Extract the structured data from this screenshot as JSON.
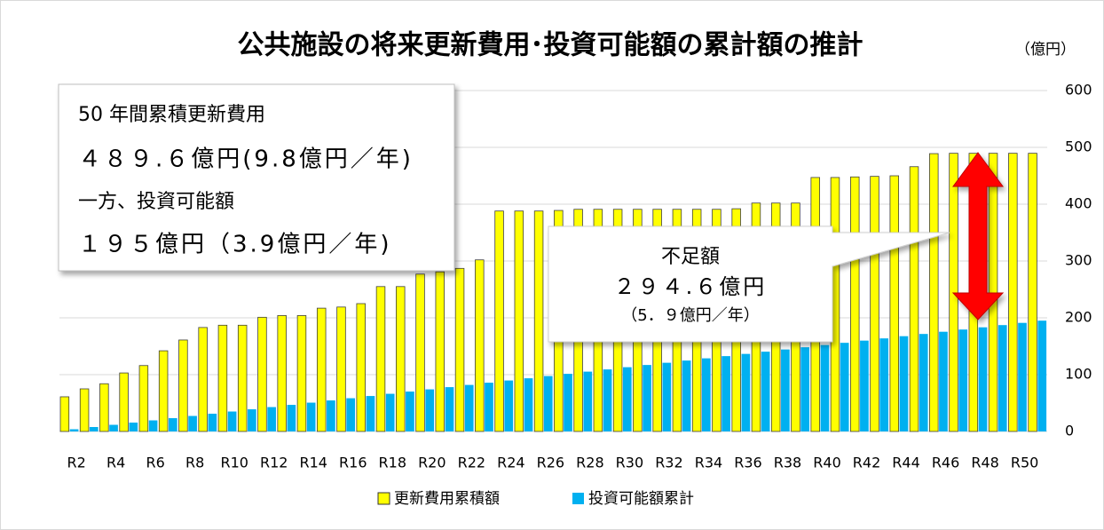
{
  "chart_data": {
    "type": "bar",
    "title": "公共施設の将来更新費用･投資可能額の累計額の推計",
    "y_axis_label": "（億円）",
    "annotations": [
      "50 年間累積更新費用",
      "４８９.６億円(9.8億円／年)",
      "一方、投資可能額",
      "１９５億円（3.9億円／年)",
      "不足額",
      "２９４.６億円",
      "（5．９億円／年）"
    ],
    "categories": [
      "R2",
      null,
      "R4",
      null,
      "R6",
      null,
      "R8",
      null,
      "R10",
      null,
      "R12",
      null,
      "R14",
      null,
      "R16",
      null,
      "R18",
      null,
      "R20",
      null,
      "R22",
      null,
      "R24",
      null,
      "R26",
      null,
      "R28",
      null,
      "R30",
      null,
      "R32",
      null,
      "R34",
      null,
      "R36",
      null,
      "R38",
      null,
      "R40",
      null,
      "R42",
      null,
      "R44",
      null,
      "R46",
      null,
      "R48",
      null,
      "R50",
      null
    ],
    "series": [
      {
        "name": "更新費用累積額",
        "color": "#ffff00",
        "values": [
          61,
          75,
          84,
          103,
          116,
          142,
          161,
          183,
          187,
          187,
          201,
          204,
          204,
          217,
          219,
          225,
          255,
          255,
          277,
          281,
          287,
          302,
          388,
          388,
          388,
          389,
          391,
          391,
          391,
          391,
          391,
          391,
          391,
          391,
          392,
          402,
          402,
          402,
          447,
          447,
          448,
          449,
          450,
          466,
          489,
          489.6,
          489.6,
          489.6,
          489.6,
          489.6
        ]
      },
      {
        "name": "投資可能額累計",
        "color": "#00b0f0",
        "values": [
          3.9,
          7.8,
          11.7,
          15.6,
          19.5,
          23.4,
          27.3,
          31.2,
          35.1,
          39,
          42.9,
          46.8,
          50.7,
          54.6,
          58.5,
          62.4,
          66.3,
          70.2,
          74.1,
          78,
          81.9,
          85.8,
          89.7,
          93.6,
          97.5,
          101.4,
          105.3,
          109.2,
          113.1,
          117,
          120.9,
          124.8,
          128.7,
          132.6,
          136.5,
          140.4,
          144.3,
          148.2,
          152.1,
          156,
          159.9,
          163.8,
          167.7,
          171.6,
          175.5,
          179.4,
          183.3,
          187.2,
          191.1,
          195
        ]
      }
    ],
    "ylim": [
      0,
      600
    ],
    "yticks": [
      0,
      100,
      200,
      300,
      400,
      500,
      600
    ],
    "grid": true
  }
}
